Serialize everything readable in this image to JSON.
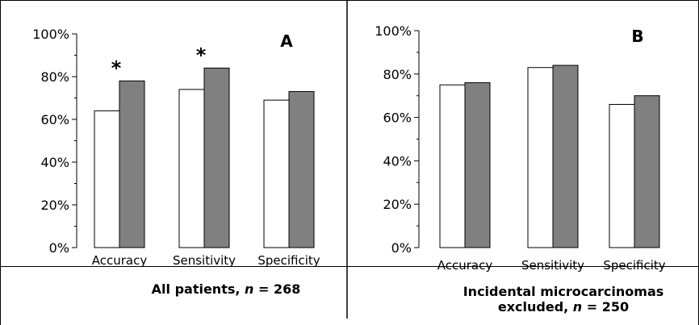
{
  "colors": {
    "bar_a": "#ffffff",
    "bar_b": "#808080",
    "stroke": "#000000"
  },
  "chart_data": [
    {
      "type": "bar",
      "panel_label": "A",
      "categories": [
        "Accuracy",
        "Sensitivity",
        "Specificity"
      ],
      "series": [
        {
          "values": [
            64,
            74,
            69
          ]
        },
        {
          "values": [
            78,
            84,
            73
          ]
        }
      ],
      "significance": [
        "*",
        "*",
        ""
      ],
      "yticks": [
        "0%",
        "20%",
        "40%",
        "60%",
        "80%",
        "100%"
      ],
      "ylim": [
        0,
        100
      ],
      "title_line1": "All patients, ",
      "title_italic": "n",
      "title_line2": " = 268"
    },
    {
      "type": "bar",
      "panel_label": "B",
      "categories": [
        "Accuracy",
        "Sensitivity",
        "Specificity"
      ],
      "series": [
        {
          "values": [
            75,
            83,
            66
          ]
        },
        {
          "values": [
            76,
            84,
            70
          ]
        }
      ],
      "significance": [
        "",
        "",
        ""
      ],
      "yticks": [
        "0%",
        "20%",
        "40%",
        "60%",
        "80%",
        "100%"
      ],
      "ylim": [
        0,
        100
      ],
      "title_line1": "Incidental microcarcinomas",
      "title_line1b": "excluded, ",
      "title_italic": "n",
      "title_line2": " = 250"
    }
  ]
}
